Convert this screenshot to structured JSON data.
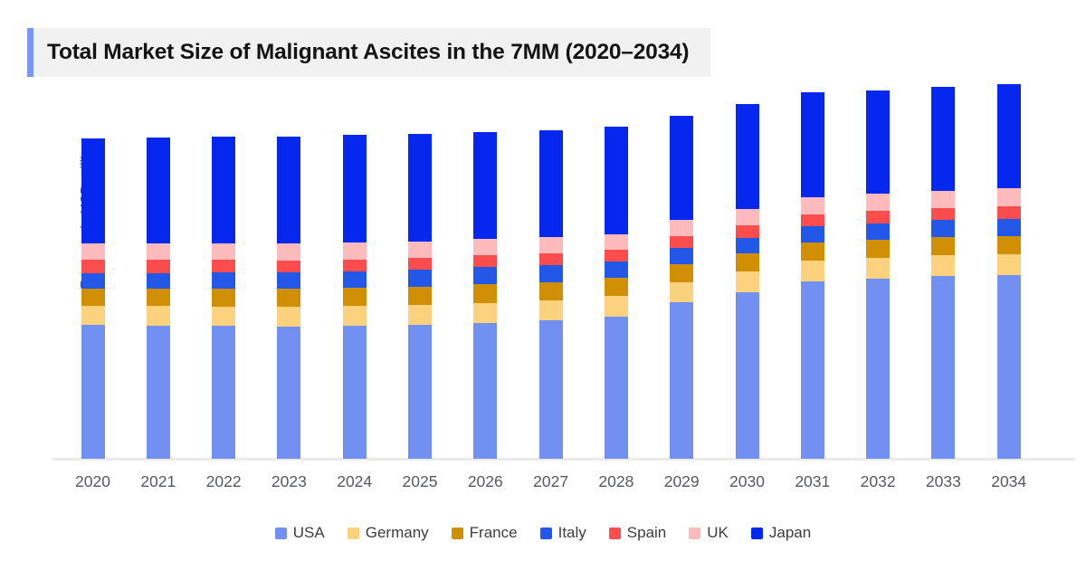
{
  "title": {
    "text": "Total Market Size of Malignant Ascites in the 7MM (2020–2034)"
  },
  "theme": {
    "title_accent_color": "#7b96f5",
    "title_background": "#f1f1f2",
    "axis_line_color": "#ebebec",
    "tick_label_color": "#55595e"
  },
  "chart_data": {
    "type": "bar",
    "stacked": true,
    "title": "Total Market Size of Malignant Ascites in the 7MM (2020–2034)",
    "xlabel": "",
    "ylabel": "Revenue in USD million",
    "ylim": [
      0,
      430
    ],
    "grid": false,
    "legend_position": "bottom",
    "categories": [
      "2020",
      "2021",
      "2022",
      "2023",
      "2024",
      "2025",
      "2026",
      "2027",
      "2028",
      "2029",
      "2030",
      "2031",
      "2032",
      "2033",
      "2034"
    ],
    "series": [
      {
        "name": "USA",
        "color": "#7190f2",
        "values": [
          148,
          147.5,
          147,
          146.5,
          147.5,
          148.5,
          150.5,
          153.5,
          157.5,
          173.5,
          184.5,
          196.5,
          199.5,
          202.5,
          203.5
        ]
      },
      {
        "name": "Germany",
        "color": "#fdd27e",
        "values": [
          21.5,
          21.5,
          21.5,
          21.5,
          21.5,
          22,
          22,
          22,
          22.5,
          21.5,
          22.5,
          22.5,
          22.5,
          22.5,
          23
        ]
      },
      {
        "name": "France",
        "color": "#d18f06",
        "values": [
          18.5,
          19,
          19.5,
          20,
          20,
          20,
          20.5,
          20,
          20,
          20,
          20,
          20,
          20,
          20,
          20
        ]
      },
      {
        "name": "Italy",
        "color": "#2257e8",
        "values": [
          17,
          17.5,
          18,
          18,
          18.5,
          19,
          19.5,
          19,
          18,
          18.5,
          17.5,
          18.5,
          18.5,
          19.5,
          19
        ]
      },
      {
        "name": "Spain",
        "color": "#fb4d4d",
        "values": [
          15,
          14.5,
          14,
          13.5,
          13,
          12.5,
          12.5,
          13,
          13,
          12.5,
          13.5,
          12.5,
          13.5,
          12.5,
          13.5
        ]
      },
      {
        "name": "UK",
        "color": "#ffbabc",
        "values": [
          18.5,
          18.5,
          18.5,
          18.5,
          18.5,
          18.5,
          18.5,
          18,
          17.5,
          18,
          18,
          19,
          19.5,
          19,
          20
        ]
      },
      {
        "name": "Japan",
        "color": "#0628ee",
        "values": [
          115.5,
          116.5,
          117.5,
          118.5,
          119,
          119,
          118,
          118,
          119,
          115,
          116.5,
          116,
          114,
          115,
          115.5
        ]
      }
    ]
  }
}
